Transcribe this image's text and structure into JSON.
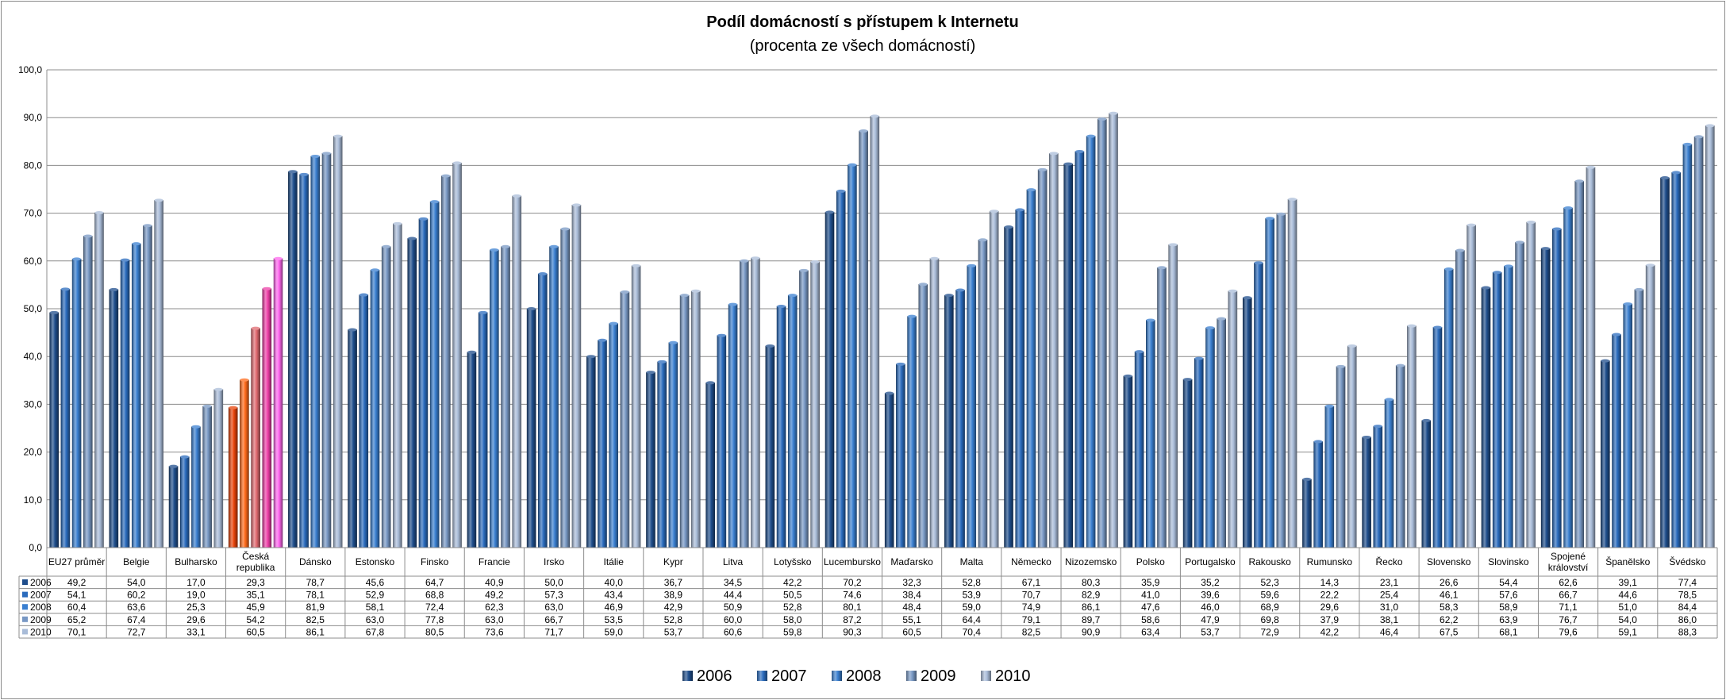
{
  "chart_data": {
    "type": "bar",
    "title": "Podíl domácností s přístupem k Internetu",
    "subtitle": "(procenta ze všech domácností)",
    "ylim": [
      0,
      100
    ],
    "yticks": [
      "0,0",
      "10,0",
      "20,0",
      "30,0",
      "40,0",
      "50,0",
      "60,0",
      "70,0",
      "80,0",
      "90,0",
      "100,0"
    ],
    "categories": [
      [
        "EU27 průměr"
      ],
      [
        "Belgie"
      ],
      [
        "Bulharsko"
      ],
      [
        "Česká",
        "republika"
      ],
      [
        "Dánsko"
      ],
      [
        "Estonsko"
      ],
      [
        "Finsko"
      ],
      [
        "Francie"
      ],
      [
        "Irsko"
      ],
      [
        "Itálie"
      ],
      [
        "Kypr"
      ],
      [
        "Litva"
      ],
      [
        "Lotyšsko"
      ],
      [
        "Lucembursko"
      ],
      [
        "Maďarsko"
      ],
      [
        "Malta"
      ],
      [
        "Německo"
      ],
      [
        "Nizozemsko"
      ],
      [
        "Polsko"
      ],
      [
        "Portugalsko"
      ],
      [
        "Rakousko"
      ],
      [
        "Rumunsko"
      ],
      [
        "Řecko"
      ],
      [
        "Slovensko"
      ],
      [
        "Slovinsko"
      ],
      [
        "Spojené",
        "království"
      ],
      [
        "Španělsko"
      ],
      [
        "Švédsko"
      ]
    ],
    "series": [
      {
        "name": "2006",
        "color": "#1f4e8c",
        "values": [
          49.2,
          54.0,
          17.0,
          29.3,
          78.7,
          45.6,
          64.7,
          40.9,
          50.0,
          40.0,
          36.7,
          34.5,
          42.2,
          70.2,
          32.3,
          52.8,
          67.1,
          80.3,
          35.9,
          35.2,
          52.3,
          14.3,
          23.1,
          26.6,
          54.4,
          62.6,
          39.1,
          77.4
        ],
        "labels": [
          "49,2",
          "54,0",
          "17,0",
          "29,3",
          "78,7",
          "45,6",
          "64,7",
          "40,9",
          "50,0",
          "40,0",
          "36,7",
          "34,5",
          "42,2",
          "70,2",
          "32,3",
          "52,8",
          "67,1",
          "80,3",
          "35,9",
          "35,2",
          "52,3",
          "14,3",
          "23,1",
          "26,6",
          "54,4",
          "62,6",
          "39,1",
          "77,4"
        ]
      },
      {
        "name": "2007",
        "color": "#2a6bbd",
        "values": [
          54.1,
          60.2,
          19.0,
          35.1,
          78.1,
          52.9,
          68.8,
          49.2,
          57.3,
          43.4,
          38.9,
          44.4,
          50.5,
          74.6,
          38.4,
          53.9,
          70.7,
          82.9,
          41.0,
          39.6,
          59.6,
          22.2,
          25.4,
          46.1,
          57.6,
          66.7,
          44.6,
          78.5
        ],
        "labels": [
          "54,1",
          "60,2",
          "19,0",
          "35,1",
          "78,1",
          "52,9",
          "68,8",
          "49,2",
          "57,3",
          "43,4",
          "38,9",
          "44,4",
          "50,5",
          "74,6",
          "38,4",
          "53,9",
          "70,7",
          "82,9",
          "41,0",
          "39,6",
          "59,6",
          "22,2",
          "25,4",
          "46,1",
          "57,6",
          "66,7",
          "44,6",
          "78,5"
        ]
      },
      {
        "name": "2008",
        "color": "#3a7fd0",
        "values": [
          60.4,
          63.6,
          25.3,
          45.9,
          81.9,
          58.1,
          72.4,
          62.3,
          63.0,
          46.9,
          42.9,
          50.9,
          52.8,
          80.1,
          48.4,
          59.0,
          74.9,
          86.1,
          47.6,
          46.0,
          68.9,
          29.6,
          31.0,
          58.3,
          58.9,
          71.1,
          51.0,
          84.4
        ],
        "labels": [
          "60,4",
          "63,6",
          "25,3",
          "45,9",
          "81,9",
          "58,1",
          "72,4",
          "62,3",
          "63,0",
          "46,9",
          "42,9",
          "50,9",
          "52,8",
          "80,1",
          "48,4",
          "59,0",
          "74,9",
          "86,1",
          "47,6",
          "46,0",
          "68,9",
          "29,6",
          "31,0",
          "58,3",
          "58,9",
          "71,1",
          "51,0",
          "84,4"
        ]
      },
      {
        "name": "2009",
        "color": "#7898c4",
        "values": [
          65.2,
          67.4,
          29.6,
          54.2,
          82.5,
          63.0,
          77.8,
          63.0,
          66.7,
          53.5,
          52.8,
          60.0,
          58.0,
          87.2,
          55.1,
          64.4,
          79.1,
          89.7,
          58.6,
          47.9,
          69.8,
          37.9,
          38.1,
          62.2,
          63.9,
          76.7,
          54.0,
          86.0
        ],
        "labels": [
          "65,2",
          "67,4",
          "29,6",
          "54,2",
          "82,5",
          "63,0",
          "77,8",
          "63,0",
          "66,7",
          "53,5",
          "52,8",
          "60,0",
          "58,0",
          "87,2",
          "55,1",
          "64,4",
          "79,1",
          "89,7",
          "58,6",
          "47,9",
          "69,8",
          "37,9",
          "38,1",
          "62,2",
          "63,9",
          "76,7",
          "54,0",
          "86,0"
        ]
      },
      {
        "name": "2010",
        "color": "#a9bcd8",
        "values": [
          70.1,
          72.7,
          33.1,
          60.5,
          86.1,
          67.8,
          80.5,
          73.6,
          71.7,
          59.0,
          53.7,
          60.6,
          59.8,
          90.3,
          60.5,
          70.4,
          82.5,
          90.9,
          63.4,
          53.7,
          72.9,
          42.2,
          46.4,
          67.5,
          68.1,
          79.6,
          59.1,
          88.3
        ],
        "labels": [
          "70,1",
          "72,7",
          "33,1",
          "60,5",
          "86,1",
          "67,8",
          "80,5",
          "73,6",
          "71,7",
          "59,0",
          "53,7",
          "60,6",
          "59,8",
          "90,3",
          "60,5",
          "70,4",
          "82,5",
          "90,9",
          "63,4",
          "53,7",
          "72,9",
          "42,2",
          "46,4",
          "67,5",
          "68,1",
          "79,6",
          "59,1",
          "88,3"
        ]
      }
    ],
    "highlight": {
      "category_index": 3,
      "colors": [
        "#e8440a",
        "#ff6a1a",
        "#e06a70",
        "#ee3fa8",
        "#ff66ee"
      ]
    },
    "grid": true,
    "legend": "bottom",
    "data_table": true
  }
}
